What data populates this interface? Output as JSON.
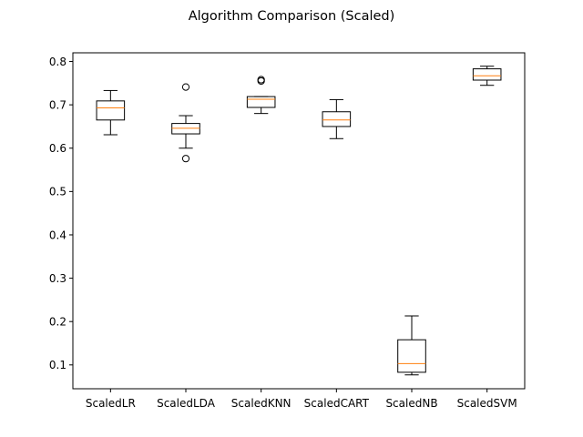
{
  "chart_data": {
    "type": "boxplot",
    "title": "Algorithm Comparison (Scaled)",
    "xlabel": "",
    "ylabel": "",
    "ylim": [
      0.045,
      0.82
    ],
    "yticks": [
      0.1,
      0.2,
      0.3,
      0.4,
      0.5,
      0.6,
      0.7,
      0.8
    ],
    "grid": false,
    "categories": [
      "ScaledLR",
      "ScaledLDA",
      "ScaledKNN",
      "ScaledCART",
      "ScaledNB",
      "ScaledSVM"
    ],
    "boxes": [
      {
        "category": "ScaledLR",
        "whisker_low": 0.631,
        "q1": 0.665,
        "median": 0.693,
        "q3": 0.709,
        "whisker_high": 0.733,
        "outliers": []
      },
      {
        "category": "ScaledLDA",
        "whisker_low": 0.6,
        "q1": 0.633,
        "median": 0.646,
        "q3": 0.657,
        "whisker_high": 0.675,
        "outliers": [
          0.741,
          0.576
        ]
      },
      {
        "category": "ScaledKNN",
        "whisker_low": 0.68,
        "q1": 0.694,
        "median": 0.713,
        "q3": 0.719,
        "whisker_high": 0.719,
        "outliers": [
          0.755,
          0.758
        ]
      },
      {
        "category": "ScaledCART",
        "whisker_low": 0.622,
        "q1": 0.65,
        "median": 0.665,
        "q3": 0.684,
        "whisker_high": 0.712,
        "outliers": []
      },
      {
        "category": "ScaledNB",
        "whisker_low": 0.077,
        "q1": 0.083,
        "median": 0.103,
        "q3": 0.158,
        "whisker_high": 0.213,
        "outliers": []
      },
      {
        "category": "ScaledSVM",
        "whisker_low": 0.745,
        "q1": 0.757,
        "median": 0.767,
        "q3": 0.783,
        "whisker_high": 0.789,
        "outliers": []
      }
    ],
    "colors": {
      "box": "#000000",
      "median": "#ff7f0e",
      "outlier": "#000000",
      "axes": "#000000"
    }
  }
}
